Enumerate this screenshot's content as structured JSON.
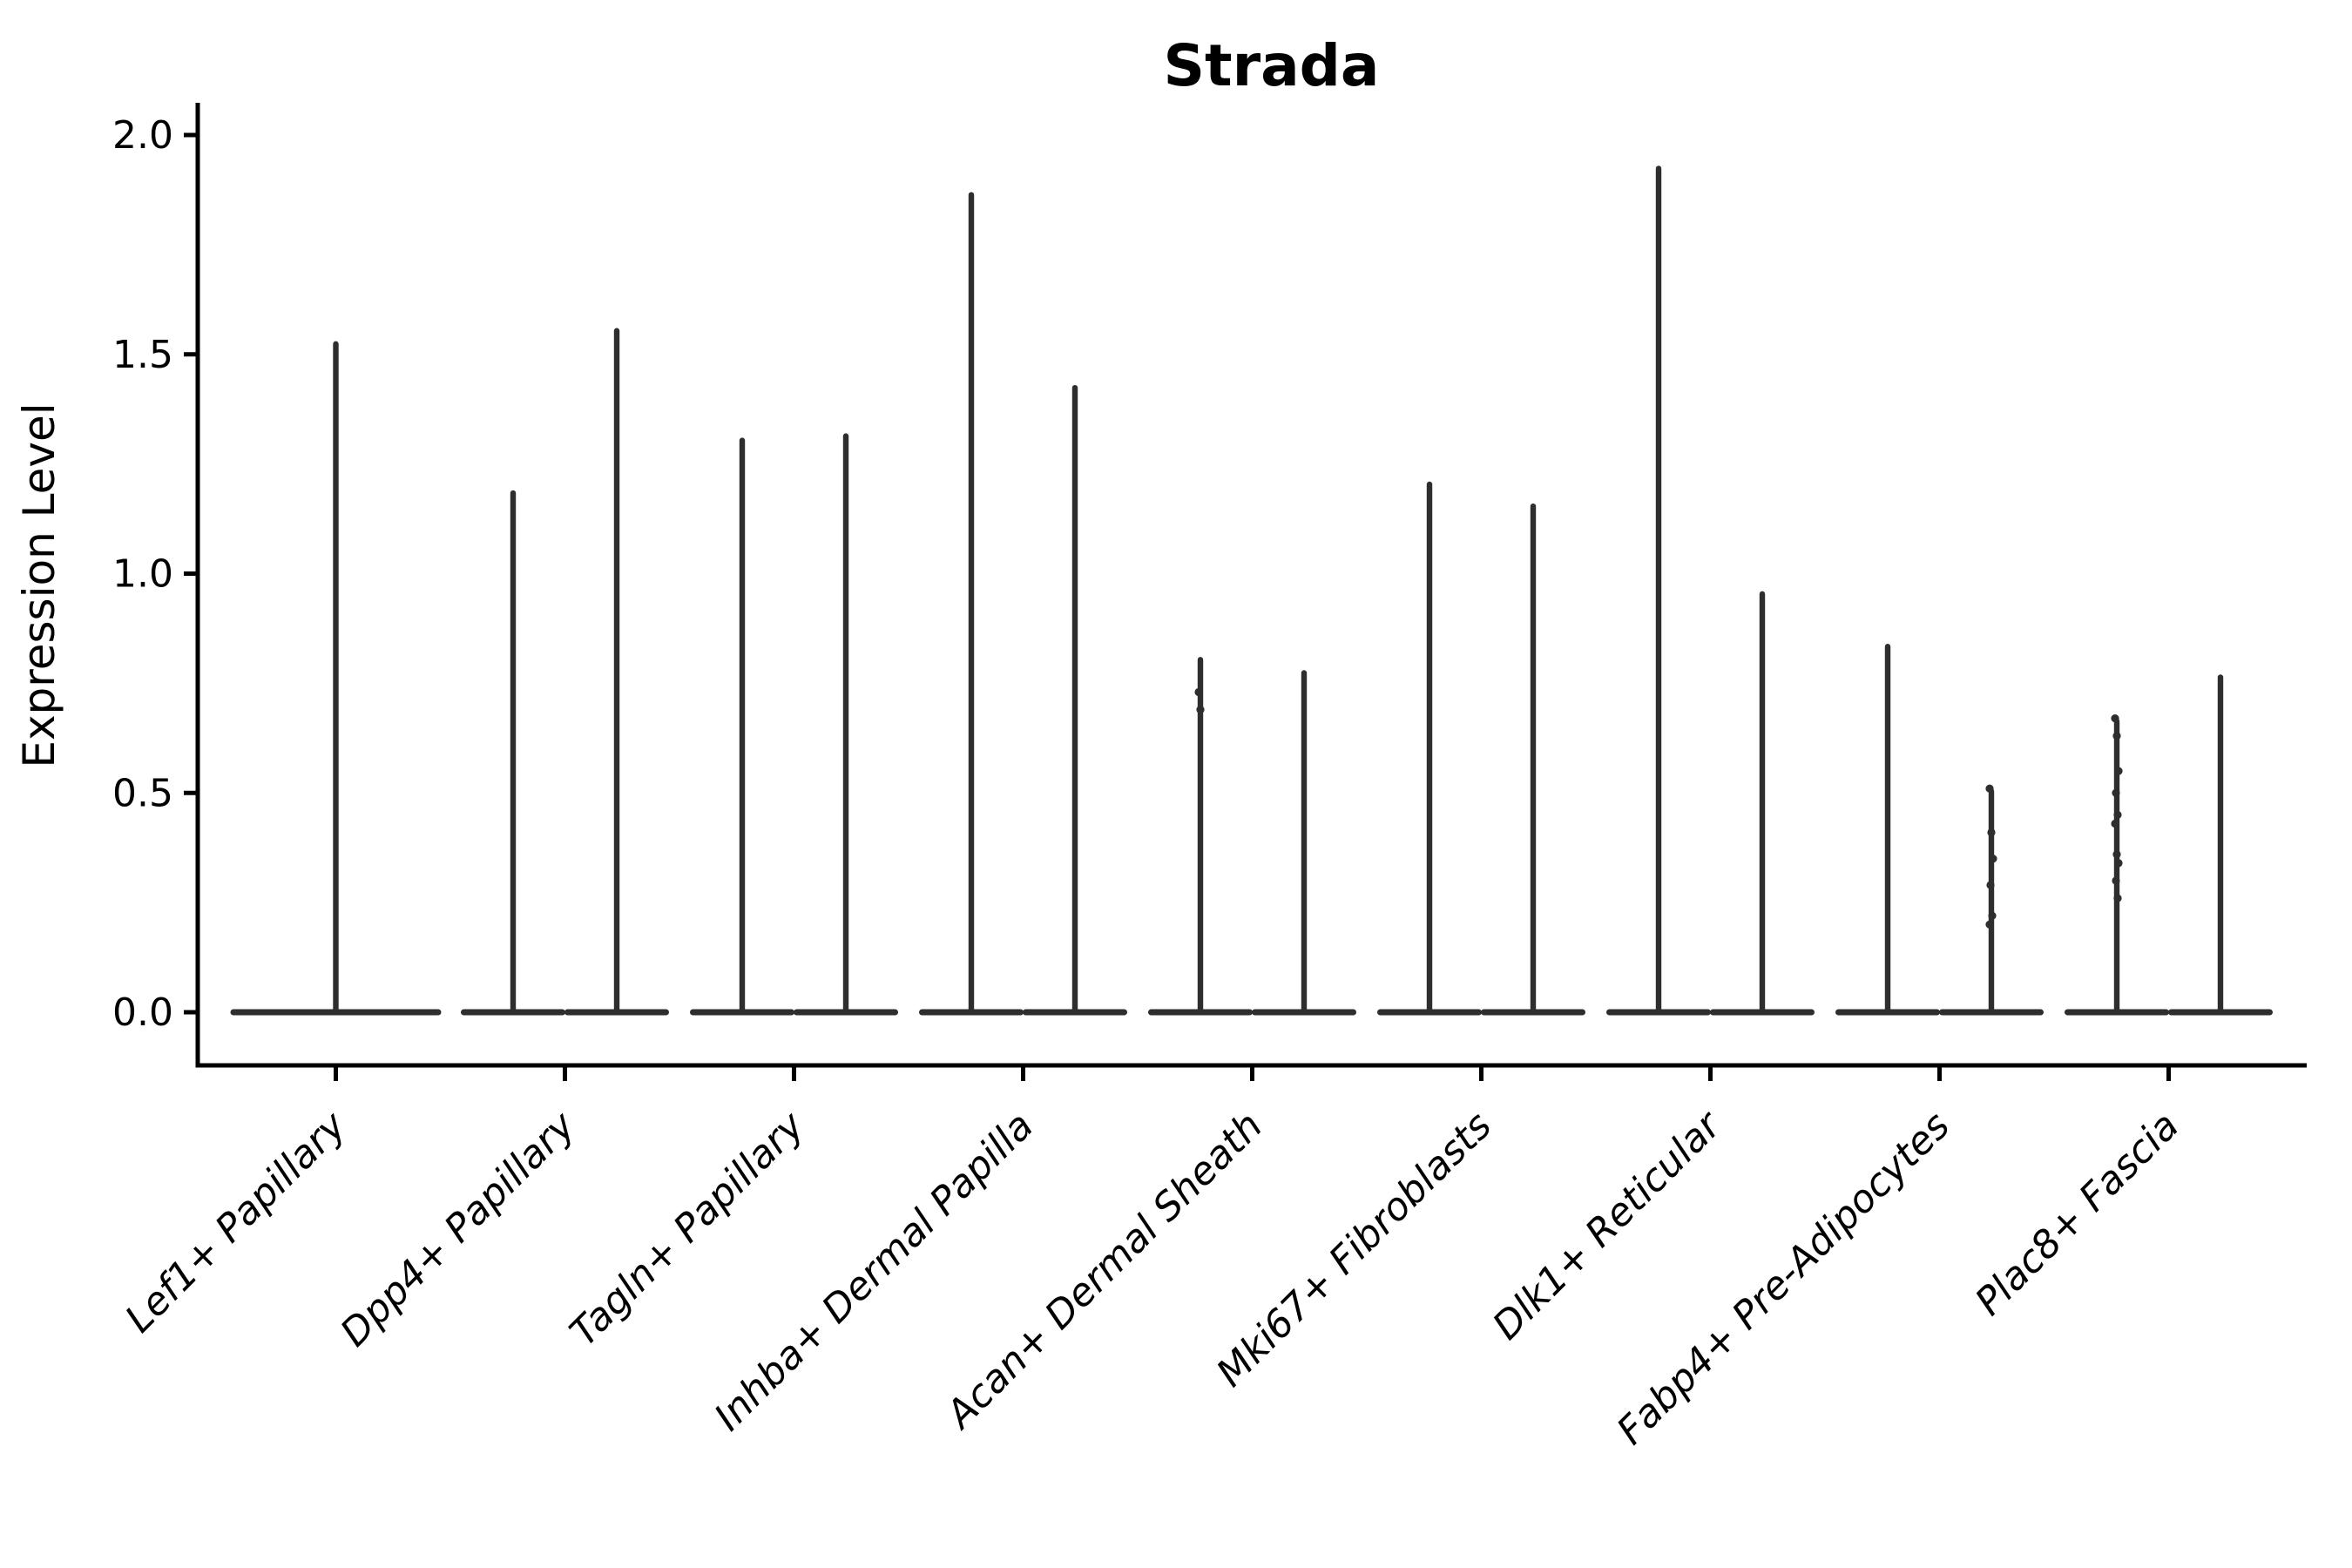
{
  "title": "Strada",
  "axes": {
    "ylabel": "Expression Level",
    "xlabel": ""
  },
  "colors": {
    "ink": "#2e2e2e",
    "axis": "#000000",
    "background": "#ffffff"
  },
  "chart_data": {
    "type": "violin",
    "title": "Strada",
    "ylabel": "Expression Level",
    "xlabel": "",
    "ylim": [
      0.0,
      2.0
    ],
    "ytick_values": [
      0.0,
      0.5,
      1.0,
      1.5,
      2.0
    ],
    "ytick_labels": [
      "0.0",
      "0.5",
      "1.0",
      "1.5",
      "2.0"
    ],
    "grid": false,
    "legend": "none",
    "categories": [
      "Lef1+ Papillary",
      "Dpp4+ Papillary",
      "Tagln+ Papillary",
      "Inhba+ Dermal Papilla",
      "Acan+ Dermal Sheath",
      "Mki67+ Fibroblasts",
      "Dlk1+ Reticular",
      "Fabp4+ Pre-Adipocytes",
      "Plac8+ Fascia",
      "Plac8+ Fascia"
    ],
    "description": "Violin plot of Strada expression; most mass at 0 (wide flat base) with a thin spike up to the max expressed value. First category has one centered violin; all other categories have two side-by-side violins.",
    "violins": [
      {
        "category_index": 0,
        "category": "Lef1+ Papillary",
        "position": "center",
        "max": 1.53,
        "dots": []
      },
      {
        "category_index": 1,
        "category": "Dpp4+ Papillary",
        "position": "left",
        "max": 1.19,
        "dots": []
      },
      {
        "category_index": 1,
        "category": "Dpp4+ Papillary",
        "position": "right",
        "max": 1.56,
        "dots": []
      },
      {
        "category_index": 2,
        "category": "Tagln+ Papillary",
        "position": "left",
        "max": 1.31,
        "dots": []
      },
      {
        "category_index": 2,
        "category": "Tagln+ Papillary",
        "position": "right",
        "max": 1.32,
        "dots": []
      },
      {
        "category_index": 3,
        "category": "Inhba+ Dermal Papilla",
        "position": "left",
        "max": 1.87,
        "dots": []
      },
      {
        "category_index": 3,
        "category": "Inhba+ Dermal Papilla",
        "position": "right",
        "max": 1.43,
        "dots": []
      },
      {
        "category_index": 4,
        "category": "Acan+ Dermal Sheath",
        "position": "left",
        "max": 0.81,
        "dots": [
          0.73,
          0.69
        ]
      },
      {
        "category_index": 4,
        "category": "Acan+ Dermal Sheath",
        "position": "right",
        "max": 0.78,
        "dots": []
      },
      {
        "category_index": 5,
        "category": "Mki67+ Fibroblasts",
        "position": "left",
        "max": 1.21,
        "dots": []
      },
      {
        "category_index": 5,
        "category": "Mki67+ Fibroblasts",
        "position": "right",
        "max": 1.16,
        "dots": []
      },
      {
        "category_index": 6,
        "category": "Dlk1+ Reticular",
        "position": "left",
        "max": 1.93,
        "dots": []
      },
      {
        "category_index": 6,
        "category": "Dlk1+ Reticular",
        "position": "right",
        "max": 0.96,
        "dots": []
      },
      {
        "category_index": 7,
        "category": "Fabp4+ Pre-Adipocytes",
        "position": "left",
        "max": 0.84,
        "dots": []
      },
      {
        "category_index": 7,
        "category": "Fabp4+ Pre-Adipocytes",
        "position": "right",
        "max": 0.51,
        "dots": [
          0.51,
          0.41,
          0.35,
          0.29,
          0.22,
          0.2
        ]
      },
      {
        "category_index": 8,
        "category": "Plac8+ Fascia",
        "position": "left",
        "max": 0.67,
        "dots": [
          0.67,
          0.63,
          0.55,
          0.5,
          0.45,
          0.43,
          0.36,
          0.34,
          0.3,
          0.26
        ]
      },
      {
        "category_index": 8,
        "category": "Plac8+ Fascia",
        "position": "right",
        "max": 0.77,
        "dots": []
      }
    ]
  }
}
